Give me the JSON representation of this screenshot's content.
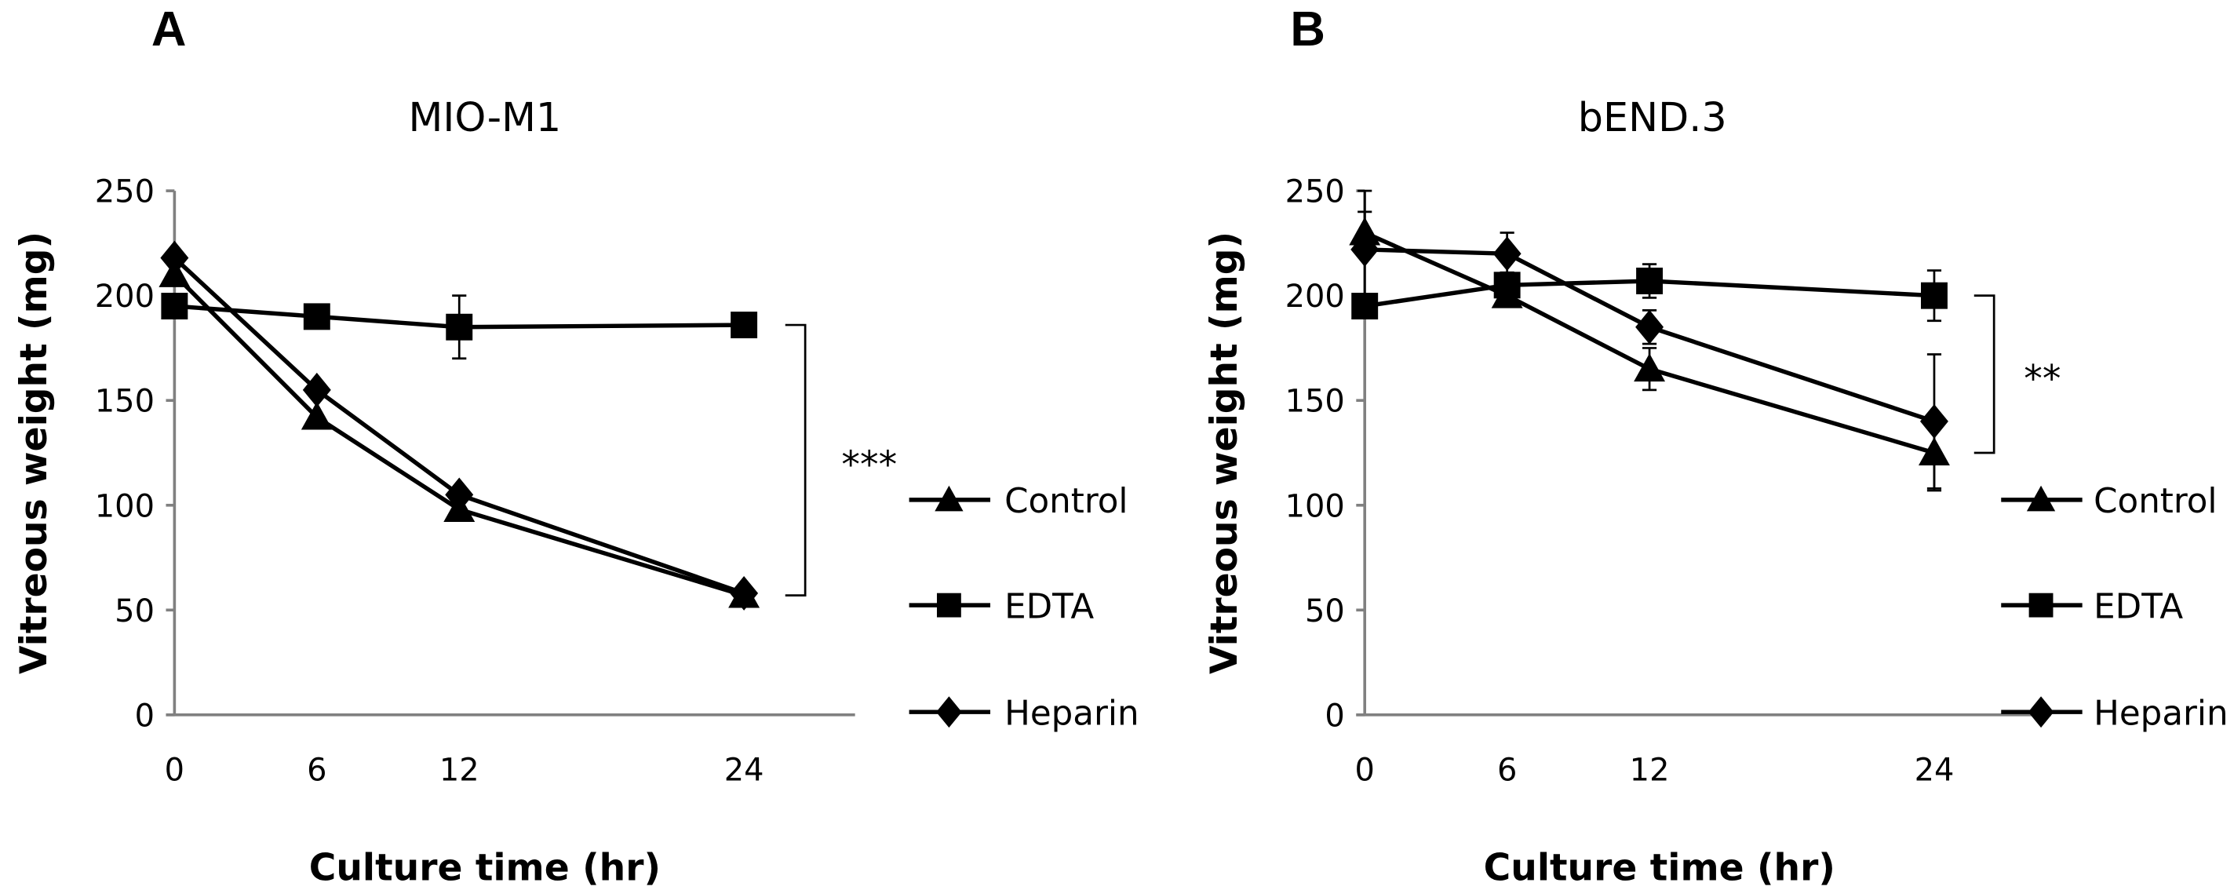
{
  "chart_data": [
    {
      "type": "line",
      "panel_label": "A",
      "title": "MIO-M1",
      "xlabel": "Culture time (hr)",
      "ylabel": "Vitreous weight (mg)",
      "x": [
        0,
        6,
        12,
        24
      ],
      "xticks": [
        "0",
        "6",
        "12",
        "24"
      ],
      "yticks": [
        "0",
        "50",
        "100",
        "150",
        "200",
        "250"
      ],
      "ylim": [
        0,
        250
      ],
      "grid": false,
      "legend_position": "right",
      "series": [
        {
          "name": "Control",
          "marker": "triangle",
          "values": [
            210,
            142,
            98,
            57
          ],
          "errors": [
            0,
            0,
            0,
            0
          ]
        },
        {
          "name": "EDTA",
          "marker": "square",
          "values": [
            195,
            190,
            185,
            186
          ],
          "errors": [
            0,
            0,
            15,
            0
          ]
        },
        {
          "name": "Heparin",
          "marker": "diamond",
          "values": [
            218,
            155,
            105,
            58
          ],
          "errors": [
            0,
            0,
            0,
            0
          ]
        }
      ],
      "annotation": {
        "label": "***",
        "y_range": [
          57,
          186
        ]
      }
    },
    {
      "type": "line",
      "panel_label": "B",
      "title": "bEND.3",
      "xlabel": "Culture time (hr)",
      "ylabel": "Vitreous weight (mg)",
      "x": [
        0,
        6,
        12,
        24
      ],
      "xticks": [
        "0",
        "6",
        "12",
        "24"
      ],
      "yticks": [
        "0",
        "50",
        "100",
        "150",
        "200",
        "250"
      ],
      "ylim": [
        0,
        250
      ],
      "grid": false,
      "legend_position": "right",
      "series": [
        {
          "name": "Control",
          "marker": "triangle",
          "values": [
            230,
            200,
            165,
            125
          ],
          "errors": [
            10,
            5,
            10,
            18
          ]
        },
        {
          "name": "EDTA",
          "marker": "square",
          "values": [
            195,
            205,
            207,
            200
          ],
          "errors": [
            0,
            6,
            8,
            12
          ]
        },
        {
          "name": "Heparin",
          "marker": "diamond",
          "values": [
            222,
            220,
            185,
            140
          ],
          "errors": [
            28,
            10,
            8,
            32
          ]
        }
      ],
      "annotation": {
        "label": "**",
        "y_range": [
          125,
          200
        ]
      }
    }
  ],
  "colors": {
    "line": "#000000",
    "axis": "#808080"
  }
}
